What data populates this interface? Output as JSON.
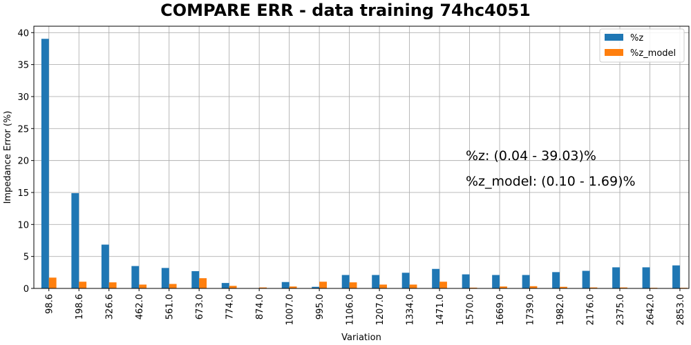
{
  "chart_data": {
    "type": "bar",
    "title": "COMPARE ERR - data training 74hc4051",
    "xlabel": "Variation",
    "ylabel": "Impedance Error (%)",
    "ylim": [
      0,
      41
    ],
    "yticks": [
      0,
      5,
      10,
      15,
      20,
      25,
      30,
      35,
      40
    ],
    "grid": true,
    "legend_position": "top-right",
    "categories": [
      "98.6",
      "198.6",
      "326.6",
      "462.0",
      "561.0",
      "673.0",
      "774.0",
      "874.0",
      "1007.0",
      "995.0",
      "1106.0",
      "1207.0",
      "1334.0",
      "1471.0",
      "1570.0",
      "1669.0",
      "1739.0",
      "1982.0",
      "2176.0",
      "2375.0",
      "2642.0",
      "2853.0"
    ],
    "series": [
      {
        "name": "%z",
        "color": "#1f77b4",
        "values": [
          39.03,
          14.9,
          6.85,
          3.5,
          3.2,
          2.7,
          0.85,
          0.04,
          1.0,
          0.25,
          2.1,
          2.1,
          2.45,
          3.05,
          2.2,
          2.1,
          2.1,
          2.55,
          2.75,
          3.3,
          3.3,
          3.6
        ]
      },
      {
        "name": "%z_model",
        "color": "#ff7f0e",
        "values": [
          1.69,
          1.05,
          0.95,
          0.6,
          0.7,
          1.6,
          0.4,
          0.15,
          0.3,
          1.05,
          0.95,
          0.6,
          0.6,
          1.05,
          0.12,
          0.3,
          0.35,
          0.25,
          0.15,
          0.15,
          0.1,
          0.1
        ]
      }
    ],
    "annotations": [
      "%z: (0.04 - 39.03)%",
      "%z_model: (0.10 - 1.69)%"
    ]
  }
}
